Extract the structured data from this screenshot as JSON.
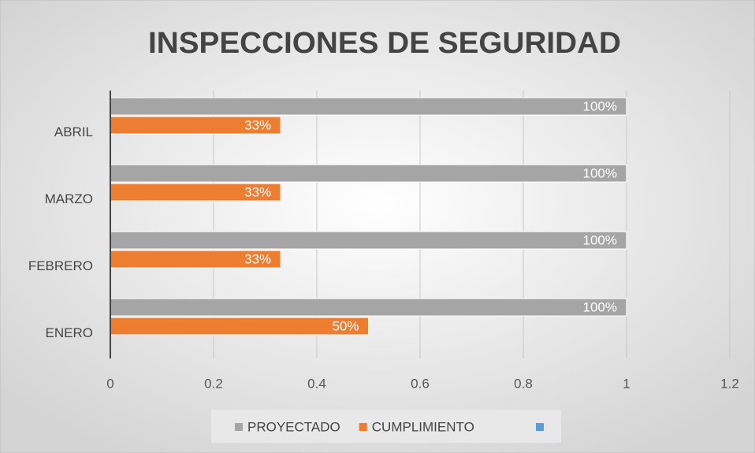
{
  "chart_data": {
    "type": "bar",
    "orientation": "horizontal",
    "title": "INSPECCIONES DE SEGURIDAD",
    "categories": [
      "ABRIL",
      "MARZO",
      "FEBRERO",
      "ENERO"
    ],
    "series": [
      {
        "name": "PROYECTADO",
        "color": "#a5a5a5",
        "values": [
          1,
          1,
          1,
          1
        ],
        "value_labels": [
          "100%",
          "100%",
          "100%",
          "100%"
        ]
      },
      {
        "name": "CUMPLIMIENTO",
        "color": "#ed7d31",
        "values": [
          0.33,
          0.33,
          0.33,
          0.5
        ],
        "value_labels": [
          "33%",
          "33%",
          "33%",
          "50%"
        ]
      }
    ],
    "xlim": [
      0,
      1.2
    ],
    "xticks": [
      0,
      0.2,
      0.4,
      0.6,
      0.8,
      1,
      1.2
    ],
    "grid": true,
    "legend": "bottom"
  }
}
